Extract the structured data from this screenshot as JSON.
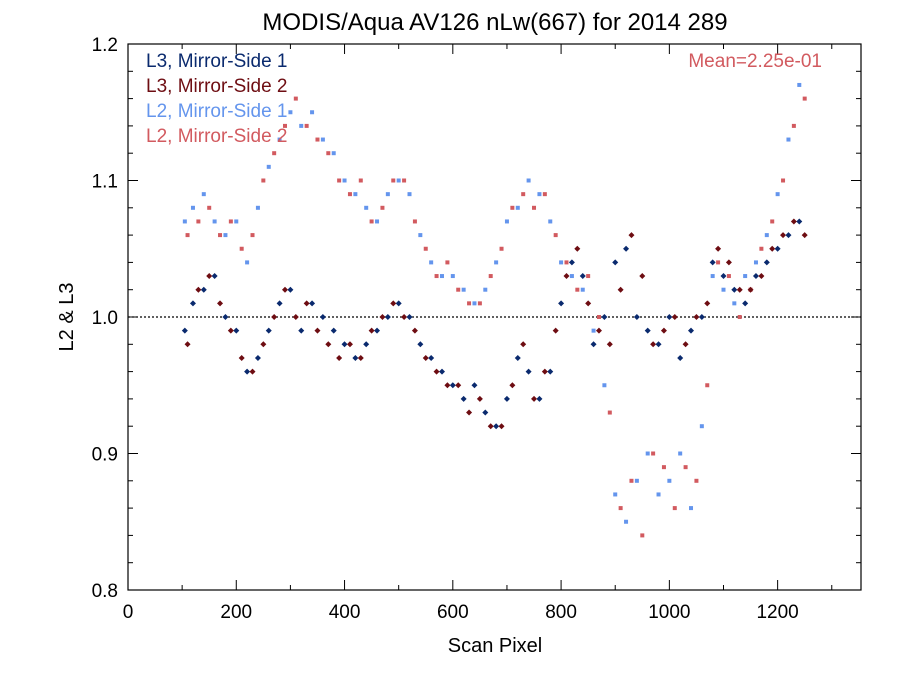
{
  "chart_data": {
    "type": "scatter",
    "title": "MODIS/Aqua AV126 nLw(667) for 2014 289",
    "xlabel": "Scan Pixel",
    "ylabel": "L2 & L3",
    "xlim": [
      0,
      1354
    ],
    "ylim": [
      0.8,
      1.2
    ],
    "xticks": [
      "0",
      "200",
      "400",
      "600",
      "800",
      "1000",
      "1200"
    ],
    "yticks": [
      "0.8",
      "0.9",
      "1.0",
      "1.1",
      "1.2"
    ],
    "reference_line": 1.0,
    "annotation": "Mean=2.25e-01",
    "legend_position": "top-left",
    "grid": false,
    "series": [
      {
        "name": "L3, Mirror-Side 1",
        "color": "#0a2a6e",
        "marker": "diamond",
        "x": [
          105,
          120,
          140,
          160,
          180,
          200,
          220,
          240,
          260,
          280,
          300,
          320,
          340,
          360,
          380,
          400,
          420,
          440,
          460,
          480,
          500,
          520,
          540,
          560,
          580,
          600,
          620,
          640,
          660,
          680,
          700,
          720,
          740,
          760,
          780,
          800,
          820,
          840,
          860,
          880,
          900,
          920,
          940,
          960,
          980,
          1000,
          1020,
          1040,
          1060,
          1080,
          1100,
          1120,
          1140,
          1160,
          1180,
          1200,
          1220,
          1240
        ],
        "y": [
          0.99,
          1.01,
          1.02,
          1.03,
          1.0,
          0.99,
          0.96,
          0.97,
          0.99,
          1.01,
          1.02,
          0.99,
          1.01,
          1.0,
          0.99,
          0.98,
          0.97,
          0.98,
          0.99,
          1.0,
          1.01,
          1.0,
          0.98,
          0.97,
          0.96,
          0.95,
          0.94,
          0.95,
          0.93,
          0.92,
          0.94,
          0.97,
          0.96,
          0.94,
          0.96,
          1.01,
          1.04,
          1.03,
          0.98,
          1.0,
          1.04,
          1.05,
          1.0,
          0.99,
          0.98,
          1.0,
          0.97,
          0.99,
          1.0,
          1.04,
          1.03,
          1.02,
          1.01,
          1.03,
          1.04,
          1.05,
          1.06,
          1.07
        ]
      },
      {
        "name": "L3, Mirror-Side 2",
        "color": "#6e0d12",
        "marker": "diamond",
        "x": [
          110,
          130,
          150,
          170,
          190,
          210,
          230,
          250,
          270,
          290,
          310,
          330,
          350,
          370,
          390,
          410,
          430,
          450,
          470,
          490,
          510,
          530,
          550,
          570,
          590,
          610,
          630,
          650,
          670,
          690,
          710,
          730,
          750,
          770,
          790,
          810,
          830,
          850,
          870,
          890,
          910,
          930,
          950,
          970,
          990,
          1010,
          1030,
          1050,
          1070,
          1090,
          1110,
          1130,
          1150,
          1170,
          1190,
          1210,
          1230,
          1250
        ],
        "y": [
          0.98,
          1.02,
          1.03,
          1.01,
          0.99,
          0.97,
          0.96,
          0.98,
          1.0,
          1.02,
          1.0,
          1.01,
          0.99,
          0.98,
          0.97,
          0.98,
          0.97,
          0.99,
          1.0,
          1.01,
          1.0,
          0.99,
          0.97,
          0.96,
          0.95,
          0.95,
          0.93,
          0.94,
          0.92,
          0.92,
          0.95,
          0.98,
          0.94,
          0.96,
          0.99,
          1.03,
          1.05,
          1.01,
          0.99,
          0.98,
          1.02,
          1.06,
          1.03,
          0.98,
          0.99,
          1.0,
          0.98,
          1.0,
          1.01,
          1.05,
          1.04,
          1.02,
          1.02,
          1.03,
          1.05,
          1.06,
          1.07,
          1.06
        ]
      },
      {
        "name": "L2, Mirror-Side 1",
        "color": "#6495ed",
        "marker": "square",
        "x": [
          105,
          120,
          140,
          160,
          180,
          200,
          220,
          240,
          260,
          280,
          300,
          320,
          340,
          360,
          380,
          400,
          420,
          440,
          460,
          480,
          500,
          520,
          540,
          560,
          580,
          600,
          620,
          640,
          660,
          680,
          700,
          720,
          740,
          760,
          780,
          800,
          820,
          840,
          860,
          880,
          900,
          920,
          940,
          960,
          980,
          1000,
          1020,
          1040,
          1060,
          1080,
          1100,
          1120,
          1140,
          1160,
          1180,
          1200,
          1220,
          1240
        ],
        "y": [
          1.07,
          1.08,
          1.09,
          1.07,
          1.06,
          1.07,
          1.04,
          1.08,
          1.11,
          1.13,
          1.15,
          1.14,
          1.15,
          1.13,
          1.12,
          1.1,
          1.09,
          1.08,
          1.07,
          1.09,
          1.1,
          1.09,
          1.06,
          1.04,
          1.03,
          1.03,
          1.02,
          1.01,
          1.02,
          1.04,
          1.07,
          1.08,
          1.1,
          1.09,
          1.07,
          1.04,
          1.03,
          1.02,
          0.99,
          0.95,
          0.87,
          0.85,
          0.88,
          0.9,
          0.87,
          0.88,
          0.9,
          0.86,
          0.92,
          1.03,
          1.02,
          1.01,
          1.03,
          1.04,
          1.06,
          1.09,
          1.13,
          1.17
        ]
      },
      {
        "name": "L2, Mirror-Side 2",
        "color": "#d25a5f",
        "marker": "square",
        "x": [
          110,
          130,
          150,
          170,
          190,
          210,
          230,
          250,
          270,
          290,
          310,
          330,
          350,
          370,
          390,
          410,
          430,
          450,
          470,
          490,
          510,
          530,
          550,
          570,
          590,
          610,
          630,
          650,
          670,
          690,
          710,
          730,
          750,
          770,
          790,
          810,
          830,
          850,
          870,
          890,
          910,
          930,
          950,
          970,
          990,
          1010,
          1030,
          1050,
          1070,
          1090,
          1110,
          1130,
          1150,
          1170,
          1190,
          1210,
          1230,
          1250
        ],
        "y": [
          1.06,
          1.07,
          1.08,
          1.06,
          1.07,
          1.05,
          1.06,
          1.1,
          1.12,
          1.14,
          1.16,
          1.14,
          1.13,
          1.12,
          1.1,
          1.09,
          1.1,
          1.07,
          1.08,
          1.1,
          1.1,
          1.07,
          1.05,
          1.03,
          1.04,
          1.02,
          1.01,
          1.01,
          1.03,
          1.05,
          1.08,
          1.09,
          1.08,
          1.09,
          1.06,
          1.04,
          1.02,
          1.03,
          1.0,
          0.93,
          0.86,
          0.88,
          0.84,
          0.9,
          0.89,
          0.86,
          0.89,
          0.88,
          0.95,
          1.04,
          1.03,
          1.0,
          1.02,
          1.05,
          1.07,
          1.1,
          1.14,
          1.16
        ]
      }
    ]
  }
}
